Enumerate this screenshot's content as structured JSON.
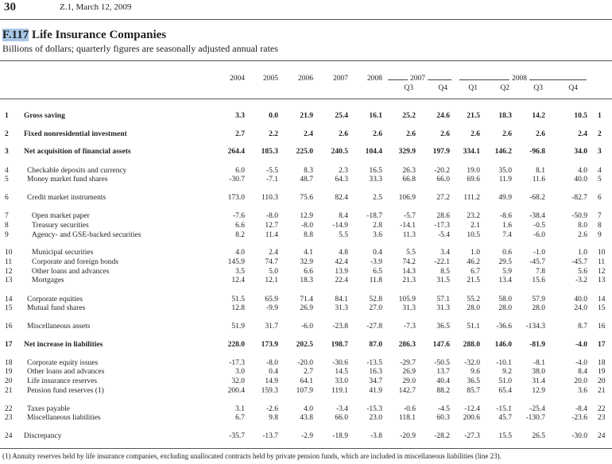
{
  "header": {
    "page_number": "30",
    "publication": "Z.1, March 12, 2009"
  },
  "title": {
    "code": "F.117",
    "text": " Life Insurance Companies"
  },
  "subtitle": "Billions of dollars; quarterly figures are seasonally adjusted annual rates",
  "columns": {
    "annual": [
      "2004",
      "2005",
      "2006",
      "2007",
      "2008"
    ],
    "group_2007": "2007",
    "group_2008": "2008",
    "quarters": [
      "Q3",
      "Q4",
      "Q1",
      "Q2",
      "Q3",
      "Q4"
    ]
  },
  "rows": [
    {
      "line": "1",
      "label": "Gross saving",
      "bold": true,
      "values": [
        "3.3",
        "0.0",
        "21.9",
        "25.4",
        "16.1",
        "25.2",
        "24.6",
        "21.5",
        "18.3",
        "14.2",
        "10.5"
      ]
    },
    {
      "line": "2",
      "label": "Fixed nonresidential investment",
      "bold": true,
      "values": [
        "2.7",
        "2.2",
        "2.4",
        "2.6",
        "2.6",
        "2.6",
        "2.6",
        "2.6",
        "2.6",
        "2.6",
        "2.4"
      ]
    },
    {
      "line": "3",
      "label": "Net acquisition of financial assets",
      "bold": true,
      "values": [
        "264.4",
        "185.3",
        "225.0",
        "240.5",
        "104.4",
        "329.9",
        "197.9",
        "334.1",
        "146.2",
        "-96.8",
        "34.0"
      ]
    },
    {
      "line": "4",
      "label": "Checkable deposits and currency",
      "indent": true,
      "values": [
        "6.0",
        "-5.5",
        "8.3",
        "2.3",
        "16.5",
        "26.3",
        "-20.2",
        "19.0",
        "35.0",
        "8.1",
        "4.0"
      ]
    },
    {
      "line": "5",
      "label": "Money market fund shares",
      "indent": true,
      "values": [
        "-30.7",
        "-7.1",
        "48.7",
        "64.3",
        "33.3",
        "66.8",
        "66.0",
        "69.6",
        "11.9",
        "11.6",
        "40.0"
      ]
    },
    {
      "line": "6",
      "label": "Credit market instruments",
      "indent": true,
      "values": [
        "173.0",
        "110.3",
        "75.6",
        "82.4",
        "2.5",
        "106.9",
        "27.2",
        "111.2",
        "49.9",
        "-68.2",
        "-82.7"
      ]
    },
    {
      "line": "7",
      "label": "Open market paper",
      "indent2": true,
      "values": [
        "-7.6",
        "-8.0",
        "12.9",
        "8.4",
        "-18.7",
        "-5.7",
        "28.6",
        "23.2",
        "-8.6",
        "-38.4",
        "-50.9"
      ]
    },
    {
      "line": "8",
      "label": "Treasury securities",
      "indent2": true,
      "values": [
        "6.6",
        "12.7",
        "-8.0",
        "-14.9",
        "2.8",
        "-14.1",
        "-17.3",
        "2.1",
        "1.6",
        "-0.5",
        "8.0"
      ]
    },
    {
      "line": "9",
      "label": "Agency- and GSE-backed securities",
      "indent2": true,
      "values": [
        "8.2",
        "11.4",
        "8.8",
        "5.5",
        "3.6",
        "11.3",
        "-5.4",
        "10.5",
        "7.4",
        "-6.0",
        "2.6"
      ]
    },
    {
      "line": "10",
      "label": "Municipal securities",
      "indent2": true,
      "values": [
        "4.0",
        "2.4",
        "4.1",
        "4.8",
        "0.4",
        "5.5",
        "3.4",
        "1.0",
        "0.6",
        "-1.0",
        "1.0"
      ]
    },
    {
      "line": "11",
      "label": "Corporate and foreign bonds",
      "indent2": true,
      "values": [
        "145.9",
        "74.7",
        "32.9",
        "42.4",
        "-3.9",
        "74.2",
        "-22.1",
        "46.2",
        "29.5",
        "-45.7",
        "-45.7"
      ]
    },
    {
      "line": "12",
      "label": "Other loans and advances",
      "indent2": true,
      "values": [
        "3.5",
        "5.0",
        "6.6",
        "13.9",
        "6.5",
        "14.3",
        "8.5",
        "6.7",
        "5.9",
        "7.8",
        "5.6"
      ]
    },
    {
      "line": "13",
      "label": "Mortgages",
      "indent2": true,
      "values": [
        "12.4",
        "12.1",
        "18.3",
        "22.4",
        "11.8",
        "21.3",
        "31.5",
        "21.5",
        "13.4",
        "15.6",
        "-3.2"
      ]
    },
    {
      "line": "14",
      "label": "Corporate equities",
      "indent": true,
      "values": [
        "51.5",
        "65.9",
        "71.4",
        "84.1",
        "52.8",
        "105.9",
        "57.1",
        "55.2",
        "58.0",
        "57.9",
        "40.0"
      ]
    },
    {
      "line": "15",
      "label": "Mutual fund shares",
      "indent": true,
      "values": [
        "12.8",
        "-9.9",
        "26.9",
        "31.3",
        "27.0",
        "31.3",
        "31.3",
        "28.0",
        "28.0",
        "28.0",
        "24.0"
      ]
    },
    {
      "line": "16",
      "label": "Miscellaneous assets",
      "indent": true,
      "values": [
        "51.9",
        "31.7",
        "-6.0",
        "-23.8",
        "-27.8",
        "-7.3",
        "36.5",
        "51.1",
        "-36.6",
        "-134.3",
        "8.7"
      ]
    },
    {
      "line": "17",
      "label": "Net increase in liabilities",
      "bold": true,
      "values": [
        "228.0",
        "173.9",
        "202.5",
        "198.7",
        "87.0",
        "286.3",
        "147.6",
        "288.0",
        "146.0",
        "-81.9",
        "-4.0"
      ]
    },
    {
      "line": "18",
      "label": "Corporate equity issues",
      "indent": true,
      "values": [
        "-17.3",
        "-8.0",
        "-20.0",
        "-30.6",
        "-13.5",
        "-29.7",
        "-50.5",
        "-32.0",
        "-10.1",
        "-8.1",
        "-4.0"
      ]
    },
    {
      "line": "19",
      "label": "Other loans and advances",
      "indent": true,
      "values": [
        "3.0",
        "0.4",
        "2.7",
        "14.5",
        "16.3",
        "26.9",
        "13.7",
        "9.6",
        "9.2",
        "38.0",
        "8.4"
      ]
    },
    {
      "line": "20",
      "label": "Life insurance reserves",
      "indent": true,
      "values": [
        "32.0",
        "14.9",
        "64.1",
        "33.0",
        "34.7",
        "29.0",
        "40.4",
        "36.5",
        "51.0",
        "31.4",
        "20.0"
      ]
    },
    {
      "line": "21",
      "label": "Pension fund reserves (1)",
      "indent": true,
      "values": [
        "200.4",
        "159.3",
        "107.9",
        "119.1",
        "41.9",
        "142.7",
        "88.2",
        "85.7",
        "65.4",
        "12.9",
        "3.6"
      ]
    },
    {
      "line": "22",
      "label": "Taxes payable",
      "indent": true,
      "values": [
        "3.1",
        "-2.6",
        "4.0",
        "-3.4",
        "-15.3",
        "-0.6",
        "-4.5",
        "-12.4",
        "-15.1",
        "-25.4",
        "-8.4"
      ]
    },
    {
      "line": "23",
      "label": "Miscellaneous liabilities",
      "indent": true,
      "values": [
        "6.7",
        "9.8",
        "43.8",
        "66.0",
        "23.0",
        "118.1",
        "60.3",
        "200.6",
        "45.7",
        "-130.7",
        "-23.6"
      ]
    },
    {
      "line": "24",
      "label": "Discrepancy",
      "values": [
        "-35.7",
        "-13.7",
        "-2.9",
        "-18.9",
        "-3.8",
        "-20.9",
        "-28.2",
        "-27.3",
        "15.5",
        "26.5",
        "-30.0"
      ]
    }
  ],
  "footnote": "(1) Annuity reserves held by life insurance companies, excluding unallocated contracts held by private pension funds, which are included in miscellaneous liabilities (line 23)."
}
